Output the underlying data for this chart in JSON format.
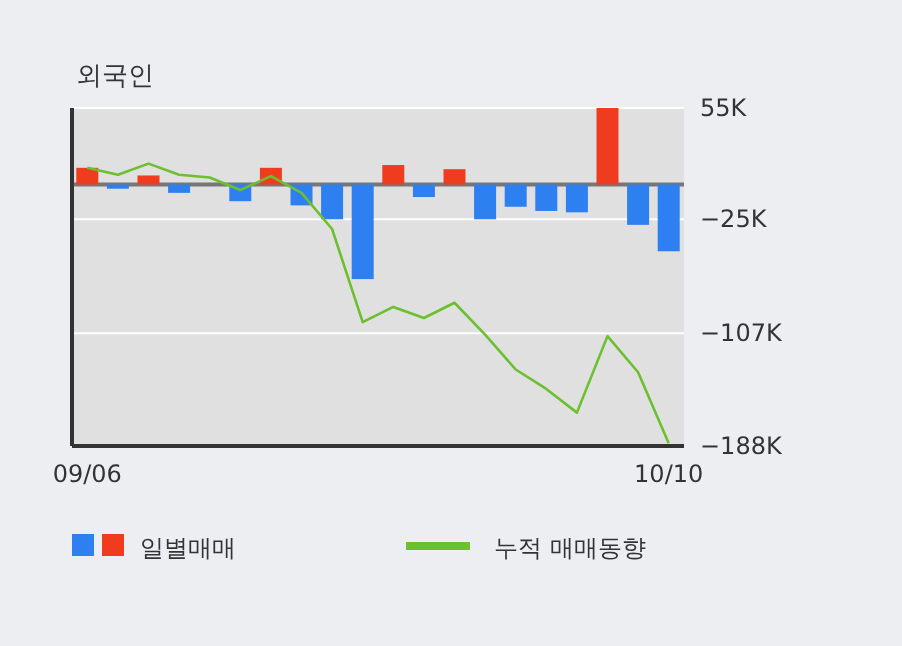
{
  "chart_data": {
    "type": "bar",
    "title": "외국인",
    "categories": [
      "09/06",
      null,
      null,
      null,
      null,
      null,
      null,
      null,
      null,
      null,
      null,
      null,
      null,
      null,
      null,
      null,
      null,
      null,
      null,
      "10/10"
    ],
    "series": [
      {
        "name": "일별매매",
        "colors": [
          "#f03c1e",
          "#2e7ff0",
          "#f03c1e",
          "#2e7ff0",
          "#2e7ff0",
          "#2e7ff0",
          "#f03c1e",
          "#2e7ff0",
          "#2e7ff0",
          "#2e7ff0",
          "#f03c1e",
          "#2e7ff0",
          "#f03c1e",
          "#2e7ff0",
          "#2e7ff0",
          "#2e7ff0",
          "#2e7ff0",
          "#f03c1e",
          "#2e7ff0",
          "#2e7ff0"
        ],
        "values": [
          12000,
          -3000,
          6500,
          -6000,
          0,
          -12000,
          12000,
          -15000,
          -25000,
          -68000,
          14000,
          -9000,
          11000,
          -25000,
          -16000,
          -19000,
          -20000,
          55000,
          -29000,
          -48000
        ]
      },
      {
        "type": "line",
        "name": "누적 매매동향",
        "color": "#6cbf2f",
        "values": [
          12000,
          7000,
          15000,
          7000,
          5000,
          -4000,
          6000,
          -6000,
          -32000,
          -99000,
          -88000,
          -96000,
          -85000,
          -108000,
          -133000,
          -147000,
          -164000,
          -109000,
          -135000,
          -186000
        ]
      }
    ],
    "ylim": [
      -188000,
      55000
    ],
    "yticks": [
      {
        "value": 55000,
        "label": "55K"
      },
      {
        "value": -25000,
        "label": "−25K"
      },
      {
        "value": -107000,
        "label": "−107K"
      },
      {
        "value": -188000,
        "label": "−188K"
      }
    ],
    "grid": "y",
    "legend": "bottom"
  }
}
